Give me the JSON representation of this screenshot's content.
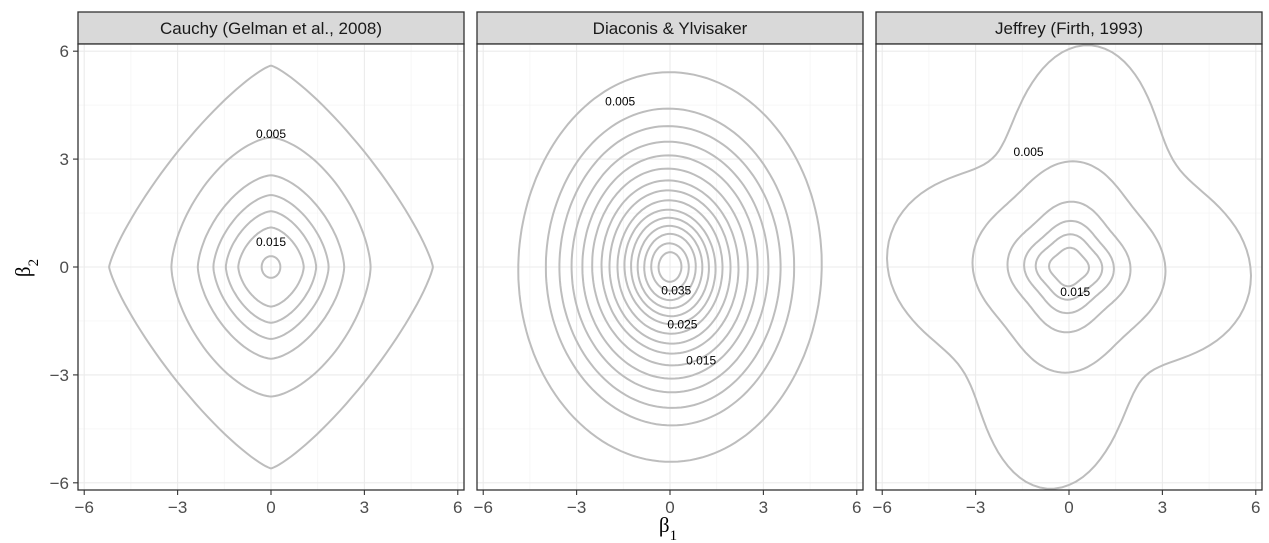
{
  "chart_data": {
    "type": "contour",
    "xlabel": "β1",
    "ylabel": "β2",
    "xlim": [
      -6.2,
      6.2
    ],
    "ylim": [
      -6.2,
      6.2
    ],
    "x_ticks": [
      -6,
      -3,
      0,
      3,
      6
    ],
    "y_ticks": [
      -6,
      -3,
      0,
      3,
      6
    ],
    "x_tick_labels": [
      "−6",
      "−3",
      "0",
      "3",
      "6"
    ],
    "y_tick_labels": [
      "−6",
      "−3",
      "0",
      "3",
      "6"
    ],
    "grid": true,
    "panels": [
      {
        "title": "Cauchy (Gelman et al., 2008)",
        "center": [
          0,
          0
        ],
        "shape": "diamond",
        "contours": [
          {
            "rx": 5.2,
            "ry": 5.6
          },
          {
            "rx": 3.2,
            "ry": 3.6
          },
          {
            "rx": 2.35,
            "ry": 2.55
          },
          {
            "rx": 1.85,
            "ry": 2.0
          },
          {
            "rx": 1.45,
            "ry": 1.55
          },
          {
            "rx": 1.05,
            "ry": 1.1
          },
          {
            "rx": 0.3,
            "ry": 0.3
          }
        ],
        "labels": [
          {
            "text": "0.005",
            "x": 0,
            "y": 3.7
          },
          {
            "text": "0.015",
            "x": 0,
            "y": 0.7
          }
        ]
      },
      {
        "title": "Diaconis & Ylvisaker",
        "center": [
          0,
          0
        ],
        "shape": "tilted",
        "contours": [
          {
            "rx": 5.6,
            "ry": 5.0
          },
          {
            "rx": 4.6,
            "ry": 4.05
          },
          {
            "rx": 4.1,
            "ry": 3.6
          },
          {
            "rx": 3.65,
            "ry": 3.2
          },
          {
            "rx": 3.25,
            "ry": 2.85
          },
          {
            "rx": 2.9,
            "ry": 2.5
          },
          {
            "rx": 2.55,
            "ry": 2.2
          },
          {
            "rx": 2.25,
            "ry": 1.95
          },
          {
            "rx": 1.95,
            "ry": 1.7
          },
          {
            "rx": 1.7,
            "ry": 1.45
          },
          {
            "rx": 1.45,
            "ry": 1.25
          },
          {
            "rx": 1.2,
            "ry": 1.05
          },
          {
            "rx": 0.95,
            "ry": 0.85
          },
          {
            "rx": 0.7,
            "ry": 0.6
          },
          {
            "rx": 0.42,
            "ry": 0.38
          }
        ],
        "labels": [
          {
            "text": "0.005",
            "x": -1.6,
            "y": 4.6
          },
          {
            "text": "0.035",
            "x": 0.2,
            "y": -0.65
          },
          {
            "text": "0.025",
            "x": 0.4,
            "y": -1.6
          },
          {
            "text": "0.015",
            "x": 1.0,
            "y": -2.6
          }
        ]
      },
      {
        "title": "Jeffrey (Firth, 1993)",
        "center": [
          0,
          0
        ],
        "shape": "star",
        "contours": [
          {
            "rx": 5.0,
            "ry": 5.2
          },
          {
            "rx": 2.9,
            "ry": 2.75
          },
          {
            "rx": 1.85,
            "ry": 1.7
          },
          {
            "rx": 1.35,
            "ry": 1.2
          },
          {
            "rx": 1.0,
            "ry": 0.85
          },
          {
            "rx": 0.6,
            "ry": 0.5
          }
        ],
        "labels": [
          {
            "text": "0.005",
            "x": -1.3,
            "y": 3.2
          },
          {
            "text": "0.015",
            "x": 0.2,
            "y": -0.7
          }
        ]
      }
    ]
  }
}
